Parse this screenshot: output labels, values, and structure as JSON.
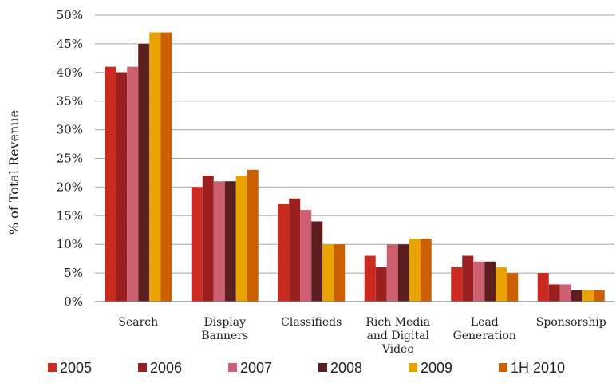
{
  "chart_data": {
    "type": "bar",
    "title": "",
    "xlabel": "",
    "ylabel": "% of Total Revenue",
    "ylim": [
      0,
      50
    ],
    "yticks": [
      "0%",
      "5%",
      "10%",
      "15%",
      "20%",
      "25%",
      "30%",
      "35%",
      "40%",
      "45%",
      "50%"
    ],
    "y_tick_values": [
      0,
      5,
      10,
      15,
      20,
      25,
      30,
      35,
      40,
      45,
      50
    ],
    "grid": "horizontal",
    "legend_position": "bottom",
    "categories": [
      [
        "Search"
      ],
      [
        "Display",
        "Banners"
      ],
      [
        "Classifieds"
      ],
      [
        "Rich Media",
        "and Digital",
        "Video"
      ],
      [
        "Lead",
        "Generation"
      ],
      [
        "Sponsorship"
      ]
    ],
    "series": [
      {
        "name": "2005",
        "color": "#cc2a20",
        "values": [
          41,
          20,
          17,
          8,
          6,
          5
        ]
      },
      {
        "name": "2006",
        "color": "#9b1f1f",
        "values": [
          40,
          22,
          18,
          6,
          8,
          3
        ]
      },
      {
        "name": "2007",
        "color": "#cd6070",
        "values": [
          41,
          21,
          16,
          10,
          7,
          3
        ]
      },
      {
        "name": "2008",
        "color": "#5a1e1e",
        "values": [
          45,
          21,
          14,
          10,
          7,
          2
        ]
      },
      {
        "name": "2009",
        "color": "#e8a300",
        "values": [
          47,
          22,
          10,
          11,
          6,
          2
        ]
      },
      {
        "name": "1H 2010",
        "color": "#cc6000",
        "values": [
          47,
          23,
          10,
          11,
          5,
          2
        ]
      }
    ]
  }
}
